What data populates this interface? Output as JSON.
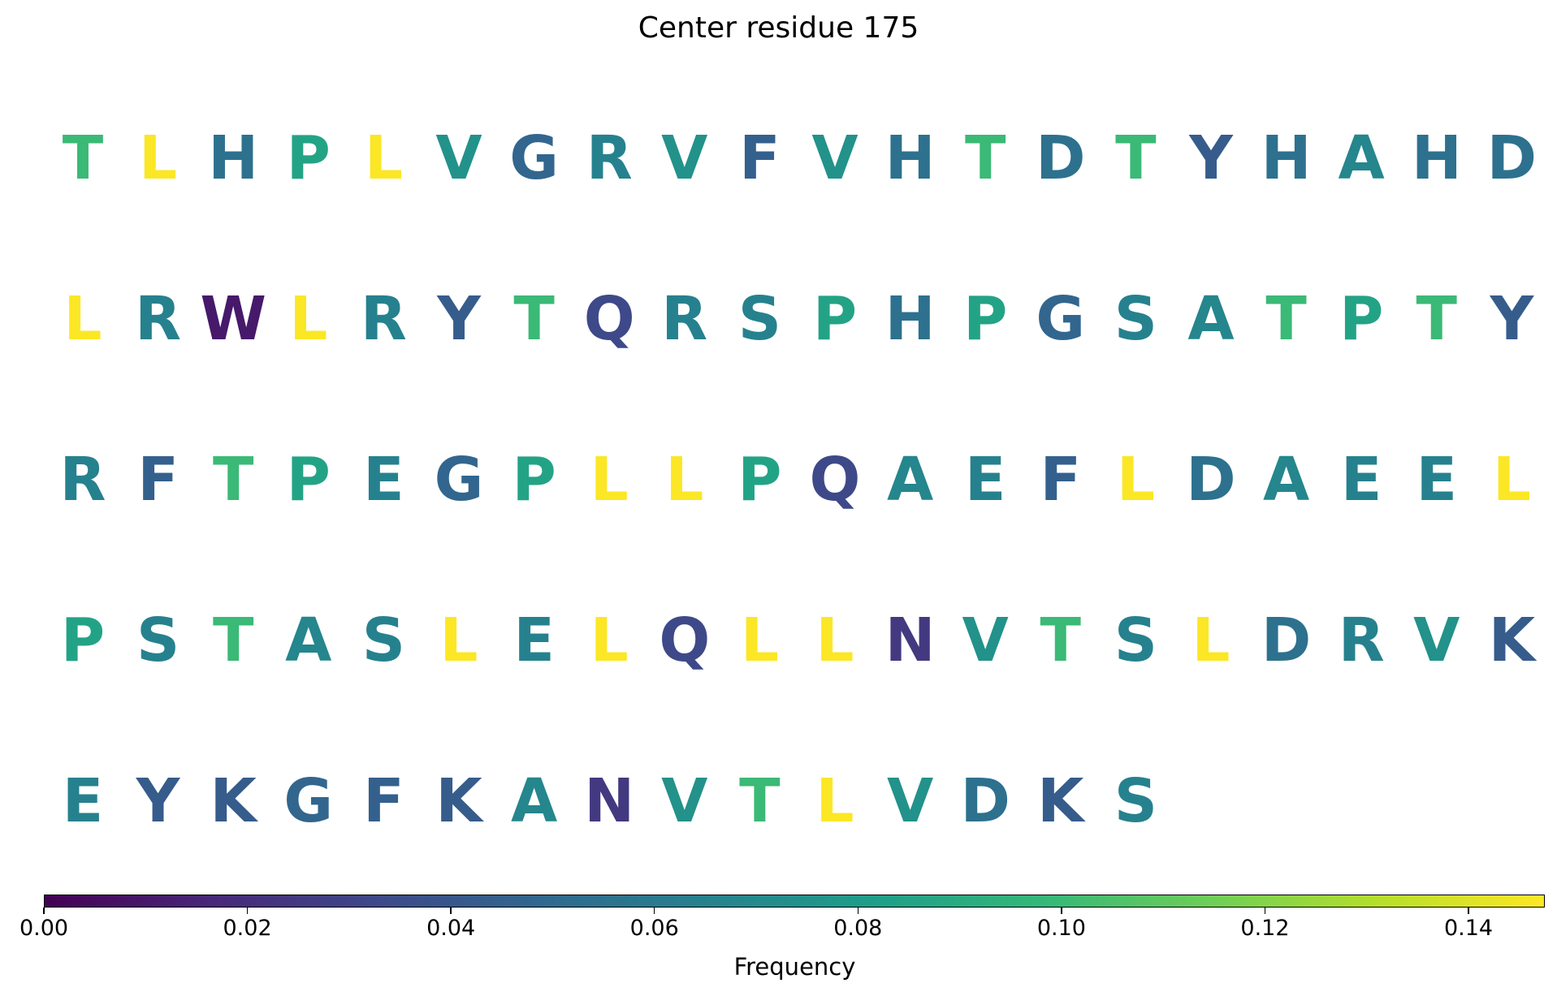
{
  "chart_data": {
    "type": "sequence-frequency-letter-grid",
    "title": "Center residue 175",
    "colorbar": {
      "label": "Frequency",
      "colormap": "viridis",
      "range": [
        0,
        0.1475
      ],
      "ticks": [
        "0.00",
        "0.02",
        "0.04",
        "0.06",
        "0.08",
        "0.10",
        "0.12",
        "0.14"
      ]
    },
    "rows": [
      [
        {
          "residue": "T",
          "frequency": 0.1
        },
        {
          "residue": "L",
          "frequency": 0.147
        },
        {
          "residue": "H",
          "frequency": 0.055
        },
        {
          "residue": "P",
          "frequency": 0.085
        },
        {
          "residue": "L",
          "frequency": 0.147
        },
        {
          "residue": "V",
          "frequency": 0.075
        },
        {
          "residue": "G",
          "frequency": 0.048
        },
        {
          "residue": "R",
          "frequency": 0.065
        },
        {
          "residue": "V",
          "frequency": 0.075
        },
        {
          "residue": "F",
          "frequency": 0.045
        },
        {
          "residue": "V",
          "frequency": 0.075
        },
        {
          "residue": "H",
          "frequency": 0.055
        },
        {
          "residue": "T",
          "frequency": 0.1
        },
        {
          "residue": "D",
          "frequency": 0.055
        },
        {
          "residue": "T",
          "frequency": 0.1
        },
        {
          "residue": "Y",
          "frequency": 0.043
        },
        {
          "residue": "H",
          "frequency": 0.055
        },
        {
          "residue": "A",
          "frequency": 0.068
        },
        {
          "residue": "H",
          "frequency": 0.055
        },
        {
          "residue": "D",
          "frequency": 0.055
        }
      ],
      [
        {
          "residue": "L",
          "frequency": 0.147
        },
        {
          "residue": "R",
          "frequency": 0.065
        },
        {
          "residue": "W",
          "frequency": 0.01
        },
        {
          "residue": "L",
          "frequency": 0.147
        },
        {
          "residue": "R",
          "frequency": 0.065
        },
        {
          "residue": "Y",
          "frequency": 0.043
        },
        {
          "residue": "T",
          "frequency": 0.1
        },
        {
          "residue": "Q",
          "frequency": 0.033
        },
        {
          "residue": "R",
          "frequency": 0.065
        },
        {
          "residue": "S",
          "frequency": 0.065
        },
        {
          "residue": "P",
          "frequency": 0.085
        },
        {
          "residue": "H",
          "frequency": 0.055
        },
        {
          "residue": "P",
          "frequency": 0.085
        },
        {
          "residue": "G",
          "frequency": 0.048
        },
        {
          "residue": "S",
          "frequency": 0.065
        },
        {
          "residue": "A",
          "frequency": 0.068
        },
        {
          "residue": "T",
          "frequency": 0.1
        },
        {
          "residue": "P",
          "frequency": 0.085
        },
        {
          "residue": "T",
          "frequency": 0.1
        },
        {
          "residue": "Y",
          "frequency": 0.043
        }
      ],
      [
        {
          "residue": "R",
          "frequency": 0.065
        },
        {
          "residue": "F",
          "frequency": 0.045
        },
        {
          "residue": "T",
          "frequency": 0.1
        },
        {
          "residue": "P",
          "frequency": 0.085
        },
        {
          "residue": "E",
          "frequency": 0.065
        },
        {
          "residue": "G",
          "frequency": 0.048
        },
        {
          "residue": "P",
          "frequency": 0.085
        },
        {
          "residue": "L",
          "frequency": 0.147
        },
        {
          "residue": "L",
          "frequency": 0.147
        },
        {
          "residue": "P",
          "frequency": 0.085
        },
        {
          "residue": "Q",
          "frequency": 0.033
        },
        {
          "residue": "A",
          "frequency": 0.068
        },
        {
          "residue": "E",
          "frequency": 0.065
        },
        {
          "residue": "F",
          "frequency": 0.045
        },
        {
          "residue": "L",
          "frequency": 0.147
        },
        {
          "residue": "D",
          "frequency": 0.055
        },
        {
          "residue": "A",
          "frequency": 0.068
        },
        {
          "residue": "E",
          "frequency": 0.065
        },
        {
          "residue": "E",
          "frequency": 0.065
        },
        {
          "residue": "L",
          "frequency": 0.147
        }
      ],
      [
        {
          "residue": "P",
          "frequency": 0.085
        },
        {
          "residue": "S",
          "frequency": 0.065
        },
        {
          "residue": "T",
          "frequency": 0.1
        },
        {
          "residue": "A",
          "frequency": 0.068
        },
        {
          "residue": "S",
          "frequency": 0.065
        },
        {
          "residue": "L",
          "frequency": 0.147
        },
        {
          "residue": "E",
          "frequency": 0.065
        },
        {
          "residue": "L",
          "frequency": 0.147
        },
        {
          "residue": "Q",
          "frequency": 0.033
        },
        {
          "residue": "L",
          "frequency": 0.147
        },
        {
          "residue": "L",
          "frequency": 0.147
        },
        {
          "residue": "N",
          "frequency": 0.025
        },
        {
          "residue": "V",
          "frequency": 0.075
        },
        {
          "residue": "T",
          "frequency": 0.1
        },
        {
          "residue": "S",
          "frequency": 0.065
        },
        {
          "residue": "L",
          "frequency": 0.147
        },
        {
          "residue": "D",
          "frequency": 0.055
        },
        {
          "residue": "R",
          "frequency": 0.065
        },
        {
          "residue": "V",
          "frequency": 0.075
        },
        {
          "residue": "K",
          "frequency": 0.043
        }
      ],
      [
        {
          "residue": "E",
          "frequency": 0.065
        },
        {
          "residue": "Y",
          "frequency": 0.043
        },
        {
          "residue": "K",
          "frequency": 0.043
        },
        {
          "residue": "G",
          "frequency": 0.048
        },
        {
          "residue": "F",
          "frequency": 0.045
        },
        {
          "residue": "K",
          "frequency": 0.043
        },
        {
          "residue": "A",
          "frequency": 0.068
        },
        {
          "residue": "N",
          "frequency": 0.025
        },
        {
          "residue": "V",
          "frequency": 0.075
        },
        {
          "residue": "T",
          "frequency": 0.1
        },
        {
          "residue": "L",
          "frequency": 0.147
        },
        {
          "residue": "V",
          "frequency": 0.075
        },
        {
          "residue": "D",
          "frequency": 0.055
        },
        {
          "residue": "K",
          "frequency": 0.043
        },
        {
          "residue": "S",
          "frequency": 0.065
        }
      ]
    ]
  }
}
